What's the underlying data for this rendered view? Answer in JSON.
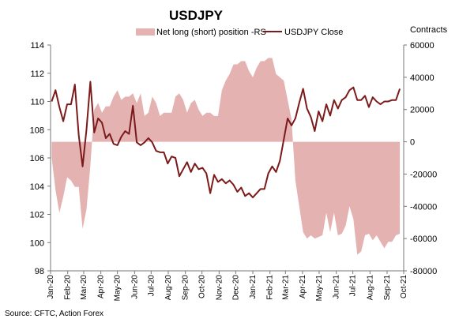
{
  "chart_data": {
    "type": "area",
    "title": "USDJPY",
    "right_axis_label": "Contracts",
    "source": "Source: CFTC, Action Forex",
    "legend": {
      "placement": "top",
      "items": [
        {
          "label": "Net long (short) position -RS",
          "kind": "area",
          "color": "#e5b2b2"
        },
        {
          "label": "USDJPY Close",
          "kind": "line",
          "color": "#7b1a1a"
        }
      ]
    },
    "y_left": {
      "min": 98,
      "max": 114,
      "ticks": [
        "98",
        "100",
        "102",
        "104",
        "106",
        "108",
        "110",
        "112",
        "114"
      ]
    },
    "y_right": {
      "min": -80000,
      "max": 60000,
      "ticks": [
        "-80000",
        "-60000",
        "-40000",
        "-20000",
        "0",
        "20000",
        "40000",
        "60000"
      ]
    },
    "x_range": [
      "2020-01-01",
      "2021-10-01"
    ],
    "x_ticks": [
      "Jan-20",
      "Feb-20",
      "Mar-20",
      "Apr-20",
      "May-20",
      "Jun-20",
      "Jul-20",
      "Aug-20",
      "Sep-20",
      "Oct-20",
      "Nov-20",
      "Dec-20",
      "Jan-21",
      "Feb-21",
      "Mar-21",
      "Apr-21",
      "May-21",
      "Jun-21",
      "Jul-21",
      "Aug-21",
      "Sep-21",
      "Oct-21"
    ],
    "grid": false,
    "series": [
      {
        "name": "Net long (short) position -RS",
        "axis": "right",
        "type": "area",
        "color": "#e5b2b2",
        "x": [
          "2020-01-03",
          "2020-01-10",
          "2020-01-17",
          "2020-01-24",
          "2020-01-31",
          "2020-02-07",
          "2020-02-14",
          "2020-02-21",
          "2020-02-28",
          "2020-03-06",
          "2020-03-13",
          "2020-03-20",
          "2020-03-27",
          "2020-04-03",
          "2020-04-10",
          "2020-04-17",
          "2020-04-24",
          "2020-05-01",
          "2020-05-08",
          "2020-05-15",
          "2020-05-22",
          "2020-05-29",
          "2020-06-05",
          "2020-06-12",
          "2020-06-19",
          "2020-06-26",
          "2020-07-03",
          "2020-07-10",
          "2020-07-17",
          "2020-07-24",
          "2020-07-31",
          "2020-08-07",
          "2020-08-14",
          "2020-08-21",
          "2020-08-28",
          "2020-09-04",
          "2020-09-11",
          "2020-09-18",
          "2020-09-25",
          "2020-10-02",
          "2020-10-09",
          "2020-10-16",
          "2020-10-23",
          "2020-10-30",
          "2020-11-06",
          "2020-11-13",
          "2020-11-20",
          "2020-11-27",
          "2020-12-04",
          "2020-12-11",
          "2020-12-18",
          "2020-12-25",
          "2021-01-01",
          "2021-01-08",
          "2021-01-15",
          "2021-01-22",
          "2021-01-29",
          "2021-02-05",
          "2021-02-12",
          "2021-02-19",
          "2021-02-26",
          "2021-03-05",
          "2021-03-12",
          "2021-03-19",
          "2021-03-26",
          "2021-04-02",
          "2021-04-09",
          "2021-04-16",
          "2021-04-23",
          "2021-04-30",
          "2021-05-07",
          "2021-05-14",
          "2021-05-21",
          "2021-05-28",
          "2021-06-04",
          "2021-06-11",
          "2021-06-18",
          "2021-06-25",
          "2021-07-02",
          "2021-07-09",
          "2021-07-16",
          "2021-07-23",
          "2021-07-30",
          "2021-08-06",
          "2021-08-13",
          "2021-08-20",
          "2021-08-27",
          "2021-09-03",
          "2021-09-10",
          "2021-09-17",
          "2021-09-24"
        ],
        "values": [
          -10000,
          -30000,
          -44000,
          -34000,
          -22000,
          -24000,
          -28000,
          -28000,
          -54000,
          -42000,
          -15000,
          20000,
          24000,
          18000,
          22000,
          22000,
          28000,
          32000,
          26000,
          28000,
          28000,
          30000,
          24000,
          30000,
          16000,
          18000,
          28000,
          24000,
          16000,
          18000,
          18000,
          18000,
          28000,
          30000,
          26000,
          18000,
          24000,
          26000,
          20000,
          16000,
          18000,
          18000,
          16000,
          16000,
          32000,
          38000,
          42000,
          48000,
          48000,
          50000,
          50000,
          44000,
          40000,
          46000,
          50000,
          50000,
          52000,
          52000,
          42000,
          40000,
          38000,
          26000,
          14000,
          -24000,
          -40000,
          -56000,
          -60000,
          -58000,
          -60000,
          -59000,
          -58000,
          -44000,
          -56000,
          -44000,
          -58000,
          -57000,
          -52000,
          -40000,
          -48000,
          -70000,
          -68000,
          -58000,
          -57000,
          -61000,
          -58000,
          -62000,
          -66000,
          -62000,
          -62000,
          -58000,
          -57000
        ]
      },
      {
        "name": "USDJPY Close",
        "axis": "left",
        "type": "line",
        "color": "#7b1a1a",
        "x": [
          "2020-01-03",
          "2020-01-10",
          "2020-01-17",
          "2020-01-24",
          "2020-01-31",
          "2020-02-07",
          "2020-02-14",
          "2020-02-21",
          "2020-02-28",
          "2020-03-06",
          "2020-03-13",
          "2020-03-20",
          "2020-03-27",
          "2020-04-03",
          "2020-04-10",
          "2020-04-17",
          "2020-04-24",
          "2020-05-01",
          "2020-05-08",
          "2020-05-15",
          "2020-05-22",
          "2020-05-29",
          "2020-06-05",
          "2020-06-12",
          "2020-06-19",
          "2020-06-26",
          "2020-07-03",
          "2020-07-10",
          "2020-07-17",
          "2020-07-24",
          "2020-07-31",
          "2020-08-07",
          "2020-08-14",
          "2020-08-21",
          "2020-08-28",
          "2020-09-04",
          "2020-09-11",
          "2020-09-18",
          "2020-09-25",
          "2020-10-02",
          "2020-10-09",
          "2020-10-16",
          "2020-10-23",
          "2020-10-30",
          "2020-11-06",
          "2020-11-13",
          "2020-11-20",
          "2020-11-27",
          "2020-12-04",
          "2020-12-11",
          "2020-12-18",
          "2020-12-25",
          "2021-01-01",
          "2021-01-08",
          "2021-01-15",
          "2021-01-22",
          "2021-01-29",
          "2021-02-05",
          "2021-02-12",
          "2021-02-19",
          "2021-02-26",
          "2021-03-05",
          "2021-03-12",
          "2021-03-19",
          "2021-03-26",
          "2021-04-02",
          "2021-04-09",
          "2021-04-16",
          "2021-04-23",
          "2021-04-30",
          "2021-05-07",
          "2021-05-14",
          "2021-05-21",
          "2021-05-28",
          "2021-06-04",
          "2021-06-11",
          "2021-06-18",
          "2021-06-25",
          "2021-07-02",
          "2021-07-09",
          "2021-07-16",
          "2021-07-23",
          "2021-07-30",
          "2021-08-06",
          "2021-08-13",
          "2021-08-20",
          "2021-08-27",
          "2021-09-03",
          "2021-09-10",
          "2021-09-17",
          "2021-09-24"
        ],
        "values": [
          110.0,
          110.8,
          109.6,
          108.6,
          109.8,
          109.8,
          111.2,
          107.6,
          105.4,
          108.0,
          111.4,
          107.8,
          108.8,
          108.5,
          107.4,
          107.7,
          107.0,
          106.9,
          107.5,
          107.9,
          107.7,
          109.7,
          107.1,
          106.9,
          107.1,
          107.4,
          107.1,
          106.5,
          106.4,
          106.4,
          105.6,
          106.1,
          106.0,
          104.7,
          105.2,
          105.7,
          105.0,
          105.6,
          105.2,
          105.3,
          104.9,
          103.5,
          104.8,
          104.3,
          104.5,
          104.2,
          104.4,
          104.1,
          103.6,
          103.9,
          103.3,
          103.5,
          103.2,
          103.5,
          103.8,
          103.8,
          104.9,
          105.4,
          105.0,
          105.8,
          107.3,
          108.8,
          108.3,
          108.8,
          109.9,
          110.9,
          109.5,
          108.9,
          107.9,
          109.3,
          108.6,
          109.8,
          109.0,
          110.1,
          109.5,
          110.1,
          110.3,
          110.8,
          111.0,
          110.1,
          110.1,
          110.4,
          109.6,
          110.3,
          110.0,
          109.8,
          110.0,
          110.0,
          110.1,
          110.1,
          110.9
        ]
      }
    ]
  }
}
